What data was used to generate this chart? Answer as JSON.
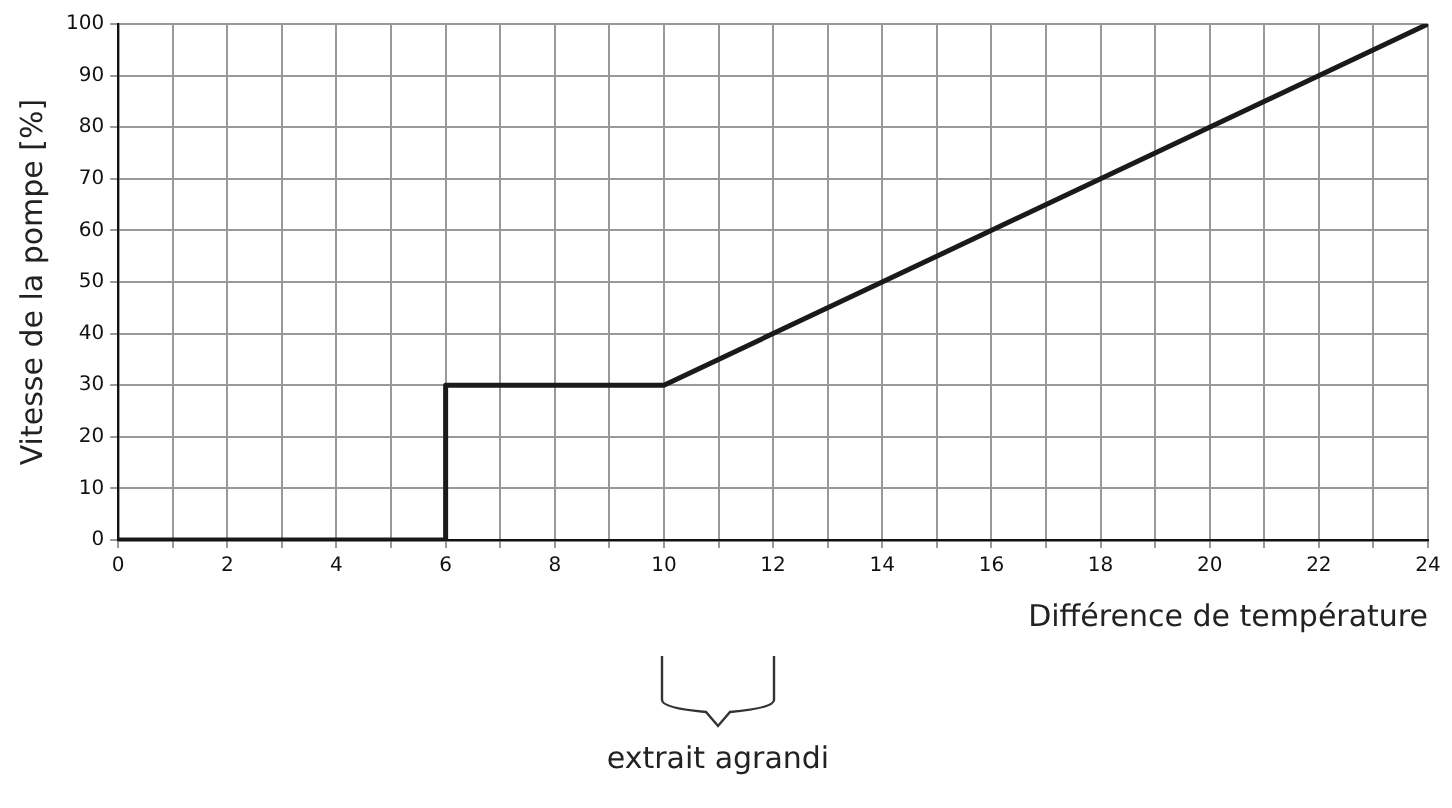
{
  "chart_data": {
    "type": "line",
    "xlabel": "Différence de température",
    "ylabel": "Vitesse de la pompe [%]",
    "x": [
      0,
      6,
      6,
      10,
      24
    ],
    "series": [
      {
        "color": "#1a1a1a",
        "values": [
          0,
          0,
          30,
          30,
          100
        ]
      }
    ],
    "xlim": [
      0,
      24
    ],
    "ylim": [
      0,
      100
    ],
    "xticks": [
      0,
      {
        "value": 1,
        "label": null
      },
      2,
      {
        "value": 3,
        "label": null
      },
      4,
      {
        "value": 5,
        "label": null
      },
      6,
      {
        "value": 7,
        "label": null
      },
      8,
      {
        "value": 9,
        "label": null
      },
      10,
      {
        "value": 11,
        "label": null
      },
      12,
      {
        "value": 13,
        "label": null
      },
      14,
      {
        "value": 15,
        "label": null
      },
      16,
      {
        "value": 17,
        "label": null
      },
      18,
      {
        "value": 19,
        "label": null
      },
      20,
      {
        "value": 21,
        "label": null
      },
      22,
      {
        "value": 23,
        "label": null
      },
      24
    ],
    "yticks": [
      0,
      10,
      20,
      30,
      40,
      50,
      60,
      70,
      80,
      90,
      100
    ],
    "grid": true,
    "legend": false,
    "marker": "none",
    "line_style": "solid",
    "annotations": [
      "extrait agrandi"
    ]
  }
}
